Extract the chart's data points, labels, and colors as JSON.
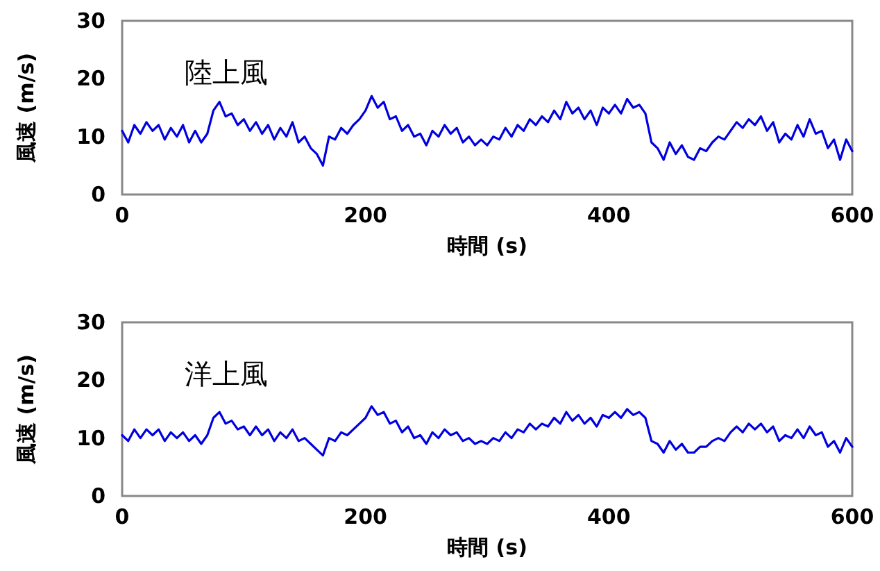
{
  "chart_data": [
    {
      "type": "line",
      "xlabel": "時間 (s)",
      "ylabel": "風速 (m/s)",
      "annotations": [
        "陸上風"
      ],
      "xlim": [
        0,
        600
      ],
      "xticks": [
        0,
        200,
        400,
        600
      ],
      "ylim": [
        0,
        30
      ],
      "yticks": [
        0,
        10,
        20,
        30
      ],
      "grid": false,
      "marker": "none",
      "line_style": "solid",
      "x": [
        0,
        5,
        10,
        15,
        20,
        25,
        30,
        35,
        40,
        45,
        50,
        55,
        60,
        65,
        70,
        75,
        80,
        85,
        90,
        95,
        100,
        105,
        110,
        115,
        120,
        125,
        130,
        135,
        140,
        145,
        150,
        155,
        160,
        165,
        170,
        175,
        180,
        185,
        190,
        195,
        200,
        205,
        210,
        215,
        220,
        225,
        230,
        235,
        240,
        245,
        250,
        255,
        260,
        265,
        270,
        275,
        280,
        285,
        290,
        295,
        300,
        305,
        310,
        315,
        320,
        325,
        330,
        335,
        340,
        345,
        350,
        355,
        360,
        365,
        370,
        375,
        380,
        385,
        390,
        395,
        400,
        405,
        410,
        415,
        420,
        425,
        430,
        435,
        440,
        445,
        450,
        455,
        460,
        465,
        470,
        475,
        480,
        485,
        490,
        495,
        500,
        505,
        510,
        515,
        520,
        525,
        530,
        535,
        540,
        545,
        550,
        555,
        560,
        565,
        570,
        575,
        580,
        585,
        590,
        595,
        600
      ],
      "series": [
        {
          "color": "#0000e0",
          "values": [
            11,
            9,
            12,
            10.5,
            12.5,
            11,
            12,
            9.5,
            11.5,
            10,
            12,
            9,
            11,
            9,
            10.5,
            14.5,
            16,
            13.5,
            14,
            12,
            13,
            11,
            12.5,
            10.5,
            12,
            9.5,
            11.5,
            10,
            12.5,
            9,
            10,
            8,
            7,
            5,
            10,
            9.5,
            11.5,
            10.5,
            12,
            13,
            14.5,
            17,
            15,
            16,
            13,
            13.5,
            11,
            12,
            10,
            10.5,
            8.5,
            11,
            10,
            12,
            10.5,
            11.5,
            9,
            10,
            8.5,
            9.5,
            8.5,
            10,
            9.5,
            11.5,
            10,
            12,
            11,
            13,
            12,
            13.5,
            12.5,
            14.5,
            13,
            16,
            14,
            15,
            13,
            14.5,
            12,
            15,
            14,
            15.5,
            14,
            16.5,
            15,
            15.5,
            14,
            9,
            8,
            6,
            9,
            7,
            8.5,
            6.5,
            6,
            8,
            7.5,
            9,
            10,
            9.5,
            11,
            12.5,
            11.5,
            13,
            12,
            13.5,
            11,
            12.5,
            9,
            10.5,
            9.5,
            12,
            10,
            13,
            10.5,
            11,
            8,
            9.5,
            6,
            9.5,
            7.5
          ]
        }
      ]
    },
    {
      "type": "line",
      "xlabel": "時間 (s)",
      "ylabel": "風速 (m/s)",
      "annotations": [
        "洋上風"
      ],
      "xlim": [
        0,
        600
      ],
      "xticks": [
        0,
        200,
        400,
        600
      ],
      "ylim": [
        0,
        30
      ],
      "yticks": [
        0,
        10,
        20,
        30
      ],
      "grid": false,
      "marker": "none",
      "line_style": "solid",
      "x": [
        0,
        5,
        10,
        15,
        20,
        25,
        30,
        35,
        40,
        45,
        50,
        55,
        60,
        65,
        70,
        75,
        80,
        85,
        90,
        95,
        100,
        105,
        110,
        115,
        120,
        125,
        130,
        135,
        140,
        145,
        150,
        155,
        160,
        165,
        170,
        175,
        180,
        185,
        190,
        195,
        200,
        205,
        210,
        215,
        220,
        225,
        230,
        235,
        240,
        245,
        250,
        255,
        260,
        265,
        270,
        275,
        280,
        285,
        290,
        295,
        300,
        305,
        310,
        315,
        320,
        325,
        330,
        335,
        340,
        345,
        350,
        355,
        360,
        365,
        370,
        375,
        380,
        385,
        390,
        395,
        400,
        405,
        410,
        415,
        420,
        425,
        430,
        435,
        440,
        445,
        450,
        455,
        460,
        465,
        470,
        475,
        480,
        485,
        490,
        495,
        500,
        505,
        510,
        515,
        520,
        525,
        530,
        535,
        540,
        545,
        550,
        555,
        560,
        565,
        570,
        575,
        580,
        585,
        590,
        595,
        600
      ],
      "series": [
        {
          "color": "#0000e0",
          "values": [
            10.5,
            9.5,
            11.5,
            10,
            11.5,
            10.5,
            11.5,
            9.5,
            11,
            10,
            11,
            9.5,
            10.5,
            9,
            10.5,
            13.5,
            14.5,
            12.5,
            13,
            11.5,
            12,
            10.5,
            12,
            10.5,
            11.5,
            9.5,
            11,
            10,
            11.5,
            9.5,
            10,
            9,
            8,
            7,
            10,
            9.5,
            11,
            10.5,
            11.5,
            12.5,
            13.5,
            15.5,
            14,
            14.5,
            12.5,
            13,
            11,
            12,
            10,
            10.5,
            9,
            11,
            10,
            11.5,
            10.5,
            11,
            9.5,
            10,
            9,
            9.5,
            9,
            10,
            9.5,
            11,
            10,
            11.5,
            11,
            12.5,
            11.5,
            12.5,
            12,
            13.5,
            12.5,
            14.5,
            13,
            14,
            12.5,
            13.5,
            12,
            14,
            13.5,
            14.5,
            13.5,
            15,
            14,
            14.5,
            13.5,
            9.5,
            9,
            7.5,
            9.5,
            8,
            9,
            7.5,
            7.5,
            8.5,
            8.5,
            9.5,
            10,
            9.5,
            11,
            12,
            11,
            12.5,
            11.5,
            12.5,
            11,
            12,
            9.5,
            10.5,
            10,
            11.5,
            10,
            12,
            10.5,
            11,
            8.5,
            9.5,
            7.5,
            10,
            8.5
          ]
        }
      ]
    }
  ]
}
